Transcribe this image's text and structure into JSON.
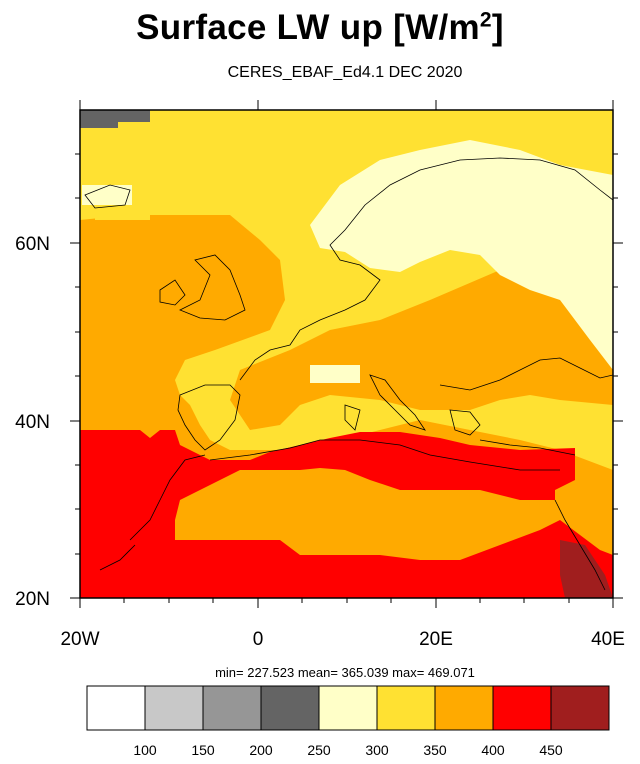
{
  "header": {
    "title": "Surface LW up [W/m",
    "title_sup": "2",
    "title_close": "]",
    "subtitle": "CERES_EBAF_Ed4.1 DEC 2020"
  },
  "map": {
    "lat_labels": [
      "60N",
      "40N",
      "20N"
    ],
    "lon_labels": [
      "20W",
      "0",
      "20E",
      "40E"
    ]
  },
  "stats": {
    "text": "min= 227.523  mean= 365.039  max= 469.071"
  },
  "colorbar": {
    "colors": [
      "#ffffff",
      "#c8c8c8",
      "#969696",
      "#646464",
      "#ffffc8",
      "#ffe132",
      "#ffaa00",
      "#ff0000",
      "#a01e1e"
    ],
    "labels": [
      "100",
      "150",
      "200",
      "250",
      "300",
      "350",
      "400",
      "450"
    ]
  }
}
